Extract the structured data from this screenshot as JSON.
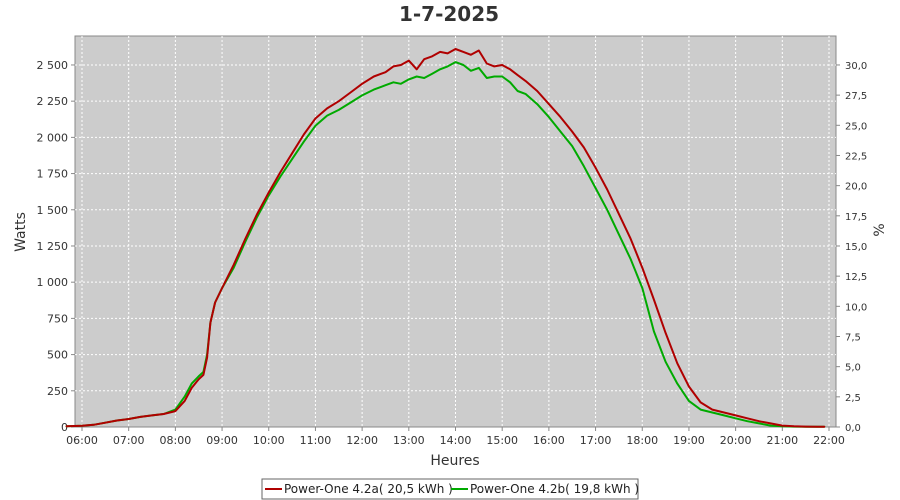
{
  "chart_data": {
    "type": "line",
    "title": "1-7-2025",
    "xlabel": "Heures",
    "ylabel": "Watts",
    "y2label": "%",
    "xlim": [
      5.5,
      22.2
    ],
    "ylim": [
      0,
      2700
    ],
    "y2lim": [
      0,
      32.4
    ],
    "x_ticks": [
      "06:00",
      "07:00",
      "08:00",
      "09:00",
      "10:00",
      "11:00",
      "12:00",
      "13:00",
      "14:00",
      "15:00",
      "16:00",
      "17:00",
      "18:00",
      "19:00",
      "20:00",
      "21:00",
      "22:00"
    ],
    "y_ticks": [
      "0",
      "250",
      "500",
      "750",
      "1 000",
      "1 250",
      "1 500",
      "1 750",
      "2 000",
      "2 250",
      "2 500"
    ],
    "y2_ticks": [
      "0,0",
      "2,5",
      "5,0",
      "7,5",
      "10,0",
      "12,5",
      "15,0",
      "17,5",
      "20,0",
      "22,5",
      "25,0",
      "27,5",
      "30,0"
    ],
    "grid": true,
    "legend_position": "bottom",
    "series": [
      {
        "name": "Power-One 4.2a( 20,5 kWh )",
        "color": "#b00000",
        "x": [
          5.67,
          6.0,
          6.25,
          6.5,
          6.75,
          7.0,
          7.25,
          7.5,
          7.75,
          8.0,
          8.2,
          8.35,
          8.5,
          8.6,
          8.68,
          8.75,
          8.85,
          9.0,
          9.25,
          9.5,
          9.75,
          10.0,
          10.25,
          10.5,
          10.75,
          11.0,
          11.25,
          11.5,
          11.75,
          12.0,
          12.25,
          12.5,
          12.67,
          12.83,
          13.0,
          13.17,
          13.33,
          13.5,
          13.67,
          13.83,
          14.0,
          14.17,
          14.33,
          14.5,
          14.67,
          14.83,
          15.0,
          15.17,
          15.33,
          15.5,
          15.75,
          16.0,
          16.25,
          16.5,
          16.75,
          17.0,
          17.25,
          17.5,
          17.75,
          18.0,
          18.25,
          18.5,
          18.75,
          19.0,
          19.25,
          19.5,
          19.75,
          20.0,
          20.25,
          20.5,
          20.75,
          21.0,
          21.25,
          21.5,
          21.75,
          21.9
        ],
        "values": [
          5,
          8,
          15,
          30,
          45,
          55,
          70,
          80,
          90,
          110,
          180,
          270,
          330,
          360,
          480,
          720,
          860,
          960,
          1120,
          1300,
          1470,
          1620,
          1760,
          1890,
          2020,
          2130,
          2200,
          2250,
          2310,
          2370,
          2420,
          2450,
          2490,
          2500,
          2530,
          2470,
          2540,
          2560,
          2590,
          2580,
          2610,
          2590,
          2570,
          2600,
          2510,
          2490,
          2500,
          2470,
          2430,
          2390,
          2320,
          2230,
          2140,
          2040,
          1930,
          1790,
          1640,
          1470,
          1300,
          1100,
          880,
          650,
          440,
          280,
          170,
          120,
          100,
          80,
          60,
          40,
          25,
          10,
          5,
          3,
          2,
          2
        ]
      },
      {
        "name": "Power-One 4.2b( 19,8 kWh )",
        "color": "#00aa00",
        "x": [
          5.67,
          6.0,
          6.25,
          6.5,
          6.75,
          7.0,
          7.25,
          7.5,
          7.75,
          8.0,
          8.2,
          8.35,
          8.5,
          8.6,
          8.68,
          8.75,
          8.85,
          9.0,
          9.25,
          9.5,
          9.75,
          10.0,
          10.25,
          10.5,
          10.75,
          11.0,
          11.25,
          11.5,
          11.75,
          12.0,
          12.25,
          12.5,
          12.67,
          12.83,
          13.0,
          13.17,
          13.33,
          13.5,
          13.67,
          13.83,
          14.0,
          14.17,
          14.33,
          14.5,
          14.67,
          14.83,
          15.0,
          15.17,
          15.33,
          15.5,
          15.75,
          16.0,
          16.25,
          16.5,
          16.75,
          17.0,
          17.25,
          17.5,
          17.75,
          18.0,
          18.25,
          18.5,
          18.75,
          19.0,
          19.25,
          19.5,
          19.75,
          20.0,
          20.25,
          20.5,
          20.75,
          21.0,
          21.25,
          21.5,
          21.75,
          21.9
        ],
        "values": [
          5,
          8,
          15,
          30,
          45,
          55,
          70,
          80,
          90,
          120,
          210,
          300,
          350,
          380,
          500,
          720,
          860,
          960,
          1100,
          1280,
          1450,
          1600,
          1730,
          1850,
          1970,
          2080,
          2150,
          2190,
          2240,
          2290,
          2330,
          2360,
          2380,
          2370,
          2400,
          2420,
          2410,
          2440,
          2470,
          2490,
          2520,
          2500,
          2460,
          2480,
          2410,
          2420,
          2420,
          2380,
          2320,
          2300,
          2230,
          2140,
          2040,
          1940,
          1800,
          1650,
          1500,
          1330,
          1160,
          960,
          660,
          450,
          300,
          180,
          120,
          100,
          80,
          60,
          40,
          25,
          10,
          5,
          3,
          2,
          2,
          2
        ]
      }
    ]
  }
}
